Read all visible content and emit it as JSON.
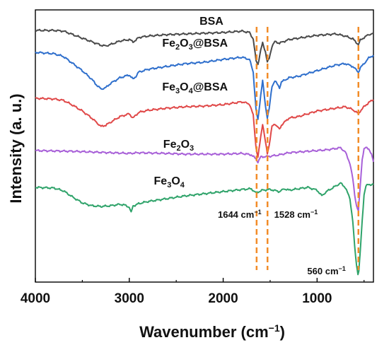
{
  "chart_data": {
    "type": "line",
    "xlabel": {
      "main": "Wavenumber (cm",
      "sup": "−1",
      "close": ")"
    },
    "ylabel": "Intensity (a. u.)",
    "xlim": [
      4000,
      400
    ],
    "xticks": [
      "4000",
      "3000",
      "2000",
      "1000"
    ],
    "xtick_values": [
      4000,
      3000,
      2000,
      1000
    ],
    "series": [
      {
        "name": {
          "parts": [
            {
              "t": "BSA"
            }
          ]
        },
        "color": "#4a4a4a",
        "baseline": 43,
        "points": [
          [
            4000,
            0
          ],
          [
            3800,
            0
          ],
          [
            3700,
            1
          ],
          [
            3600,
            6
          ],
          [
            3500,
            11
          ],
          [
            3400,
            16
          ],
          [
            3300,
            21
          ],
          [
            3250,
            22
          ],
          [
            3200,
            20
          ],
          [
            3100,
            15
          ],
          [
            3000,
            13
          ],
          [
            2960,
            16
          ],
          [
            2930,
            14
          ],
          [
            2900,
            10
          ],
          [
            2800,
            8
          ],
          [
            2600,
            6
          ],
          [
            2400,
            5
          ],
          [
            2200,
            4
          ],
          [
            2000,
            3
          ],
          [
            1800,
            1
          ],
          [
            1720,
            3
          ],
          [
            1680,
            12
          ],
          [
            1650,
            43
          ],
          [
            1630,
            48
          ],
          [
            1600,
            28
          ],
          [
            1580,
            18
          ],
          [
            1550,
            30
          ],
          [
            1530,
            45
          ],
          [
            1510,
            40
          ],
          [
            1480,
            22
          ],
          [
            1450,
            16
          ],
          [
            1400,
            18
          ],
          [
            1300,
            13
          ],
          [
            1200,
            11
          ],
          [
            1100,
            9
          ],
          [
            1000,
            7
          ],
          [
            900,
            6
          ],
          [
            800,
            5
          ],
          [
            700,
            8
          ],
          [
            620,
            12
          ],
          [
            560,
            20
          ],
          [
            540,
            14
          ],
          [
            500,
            10
          ],
          [
            450,
            6
          ],
          [
            400,
            4
          ]
        ]
      },
      {
        "name": {
          "parts": [
            {
              "t": "Fe"
            },
            {
              "t": "2",
              "sub": true
            },
            {
              "t": "O"
            },
            {
              "t": "3",
              "sub": true
            },
            {
              "t": "@BSA"
            }
          ]
        },
        "color": "#2f6fcc",
        "baseline": 74,
        "points": [
          [
            4000,
            0
          ],
          [
            3800,
            2
          ],
          [
            3700,
            6
          ],
          [
            3600,
            16
          ],
          [
            3500,
            26
          ],
          [
            3400,
            38
          ],
          [
            3350,
            46
          ],
          [
            3300,
            52
          ],
          [
            3250,
            50
          ],
          [
            3200,
            44
          ],
          [
            3100,
            36
          ],
          [
            3000,
            32
          ],
          [
            2960,
            38
          ],
          [
            2930,
            34
          ],
          [
            2900,
            28
          ],
          [
            2800,
            24
          ],
          [
            2600,
            20
          ],
          [
            2400,
            16
          ],
          [
            2200,
            14
          ],
          [
            2000,
            10
          ],
          [
            1800,
            7
          ],
          [
            1720,
            10
          ],
          [
            1680,
            28
          ],
          [
            1650,
            82
          ],
          [
            1630,
            96
          ],
          [
            1600,
            60
          ],
          [
            1580,
            40
          ],
          [
            1550,
            76
          ],
          [
            1530,
            92
          ],
          [
            1510,
            80
          ],
          [
            1480,
            48
          ],
          [
            1450,
            40
          ],
          [
            1400,
            50
          ],
          [
            1380,
            42
          ],
          [
            1300,
            36
          ],
          [
            1200,
            34
          ],
          [
            1100,
            30
          ],
          [
            1000,
            26
          ],
          [
            900,
            22
          ],
          [
            800,
            18
          ],
          [
            700,
            16
          ],
          [
            620,
            20
          ],
          [
            560,
            28
          ],
          [
            540,
            22
          ],
          [
            500,
            16
          ],
          [
            450,
            8
          ],
          [
            400,
            4
          ]
        ]
      },
      {
        "name": {
          "parts": [
            {
              "t": "Fe"
            },
            {
              "t": "3",
              "sub": true
            },
            {
              "t": "O"
            },
            {
              "t": "4",
              "sub": true
            },
            {
              "t": "@BSA"
            }
          ]
        },
        "color": "#e04848",
        "baseline": 139,
        "points": [
          [
            4000,
            0
          ],
          [
            3800,
            1
          ],
          [
            3700,
            3
          ],
          [
            3600,
            10
          ],
          [
            3500,
            18
          ],
          [
            3400,
            28
          ],
          [
            3350,
            34
          ],
          [
            3300,
            40
          ],
          [
            3250,
            38
          ],
          [
            3200,
            34
          ],
          [
            3100,
            26
          ],
          [
            3000,
            22
          ],
          [
            2960,
            28
          ],
          [
            2930,
            24
          ],
          [
            2900,
            20
          ],
          [
            2800,
            17
          ],
          [
            2600,
            14
          ],
          [
            2400,
            12
          ],
          [
            2200,
            11
          ],
          [
            2000,
            9
          ],
          [
            1800,
            5
          ],
          [
            1720,
            8
          ],
          [
            1680,
            24
          ],
          [
            1650,
            70
          ],
          [
            1630,
            84
          ],
          [
            1600,
            54
          ],
          [
            1580,
            36
          ],
          [
            1550,
            62
          ],
          [
            1530,
            78
          ],
          [
            1510,
            66
          ],
          [
            1480,
            40
          ],
          [
            1450,
            36
          ],
          [
            1400,
            44
          ],
          [
            1380,
            38
          ],
          [
            1300,
            28
          ],
          [
            1200,
            26
          ],
          [
            1100,
            22
          ],
          [
            1000,
            18
          ],
          [
            900,
            16
          ],
          [
            800,
            14
          ],
          [
            700,
            12
          ],
          [
            620,
            16
          ],
          [
            560,
            22
          ],
          [
            540,
            18
          ],
          [
            500,
            12
          ],
          [
            450,
            6
          ],
          [
            400,
            2
          ]
        ]
      },
      {
        "name": {
          "parts": [
            {
              "t": "Fe"
            },
            {
              "t": "2",
              "sub": true
            },
            {
              "t": "O"
            },
            {
              "t": "3",
              "sub": true
            }
          ]
        },
        "color": "#a860d8",
        "baseline": 213,
        "points": [
          [
            4000,
            0
          ],
          [
            3600,
            1
          ],
          [
            3400,
            2
          ],
          [
            3200,
            3
          ],
          [
            3000,
            4
          ],
          [
            2900,
            3
          ],
          [
            2600,
            4
          ],
          [
            2400,
            5
          ],
          [
            2200,
            5
          ],
          [
            2000,
            5
          ],
          [
            1800,
            4
          ],
          [
            1700,
            6
          ],
          [
            1650,
            12
          ],
          [
            1630,
            16
          ],
          [
            1600,
            9
          ],
          [
            1500,
            8
          ],
          [
            1400,
            6
          ],
          [
            1300,
            3
          ],
          [
            1200,
            2
          ],
          [
            1100,
            1
          ],
          [
            1000,
            0
          ],
          [
            900,
            -1
          ],
          [
            800,
            -3
          ],
          [
            750,
            -4
          ],
          [
            700,
            2
          ],
          [
            650,
            18
          ],
          [
            620,
            40
          ],
          [
            600,
            62
          ],
          [
            580,
            78
          ],
          [
            560,
            86
          ],
          [
            545,
            58
          ],
          [
            520,
            12
          ],
          [
            500,
            -2
          ],
          [
            480,
            -4
          ],
          [
            450,
            -3
          ],
          [
            420,
            6
          ],
          [
            400,
            16
          ]
        ]
      },
      {
        "name": {
          "parts": [
            {
              "t": "Fe"
            },
            {
              "t": "3",
              "sub": true
            },
            {
              "t": "O"
            },
            {
              "t": "4",
              "sub": true
            }
          ]
        },
        "color": "#2fa36a",
        "baseline": 265,
        "points": [
          [
            4000,
            0
          ],
          [
            3800,
            1
          ],
          [
            3700,
            5
          ],
          [
            3600,
            14
          ],
          [
            3500,
            22
          ],
          [
            3400,
            26
          ],
          [
            3300,
            27
          ],
          [
            3200,
            26
          ],
          [
            3100,
            24
          ],
          [
            3050,
            25
          ],
          [
            3000,
            28
          ],
          [
            2980,
            36
          ],
          [
            2960,
            26
          ],
          [
            2930,
            25
          ],
          [
            2900,
            23
          ],
          [
            2800,
            20
          ],
          [
            2600,
            16
          ],
          [
            2400,
            12
          ],
          [
            2200,
            9
          ],
          [
            2000,
            6
          ],
          [
            1800,
            3
          ],
          [
            1700,
            2
          ],
          [
            1650,
            8
          ],
          [
            1620,
            6
          ],
          [
            1580,
            4
          ],
          [
            1500,
            3
          ],
          [
            1400,
            6
          ],
          [
            1350,
            2
          ],
          [
            1300,
            4
          ],
          [
            1200,
            2
          ],
          [
            1100,
            0
          ],
          [
            1000,
            4
          ],
          [
            950,
            12
          ],
          [
            900,
            6
          ],
          [
            800,
            -2
          ],
          [
            750,
            -6
          ],
          [
            700,
            0
          ],
          [
            650,
            16
          ],
          [
            620,
            48
          ],
          [
            600,
            84
          ],
          [
            580,
            110
          ],
          [
            565,
            122
          ],
          [
            555,
            118
          ],
          [
            540,
            90
          ],
          [
            520,
            48
          ],
          [
            500,
            10
          ],
          [
            480,
            -2
          ],
          [
            450,
            -4
          ],
          [
            420,
            -4
          ],
          [
            400,
            -4
          ]
        ]
      }
    ],
    "label_positions": [
      {
        "series": 0,
        "x": 2125,
        "y": 35
      },
      {
        "series": 1,
        "x": 2300,
        "y": 66
      },
      {
        "series": 2,
        "x": 2300,
        "y": 128
      },
      {
        "series": 3,
        "x": 2475,
        "y": 209
      },
      {
        "series": 4,
        "x": 2575,
        "y": 261
      }
    ],
    "markers": [
      {
        "x": 1644,
        "label": {
          "main": "1644 cm",
          "sup": "−1"
        }
      },
      {
        "x": 1528,
        "label": {
          "main": "1528 cm",
          "sup": "−1"
        }
      },
      {
        "x": 560,
        "label": {
          "main": "560 cm",
          "sup": "−1"
        }
      }
    ],
    "marker_color": "#f28c28"
  }
}
